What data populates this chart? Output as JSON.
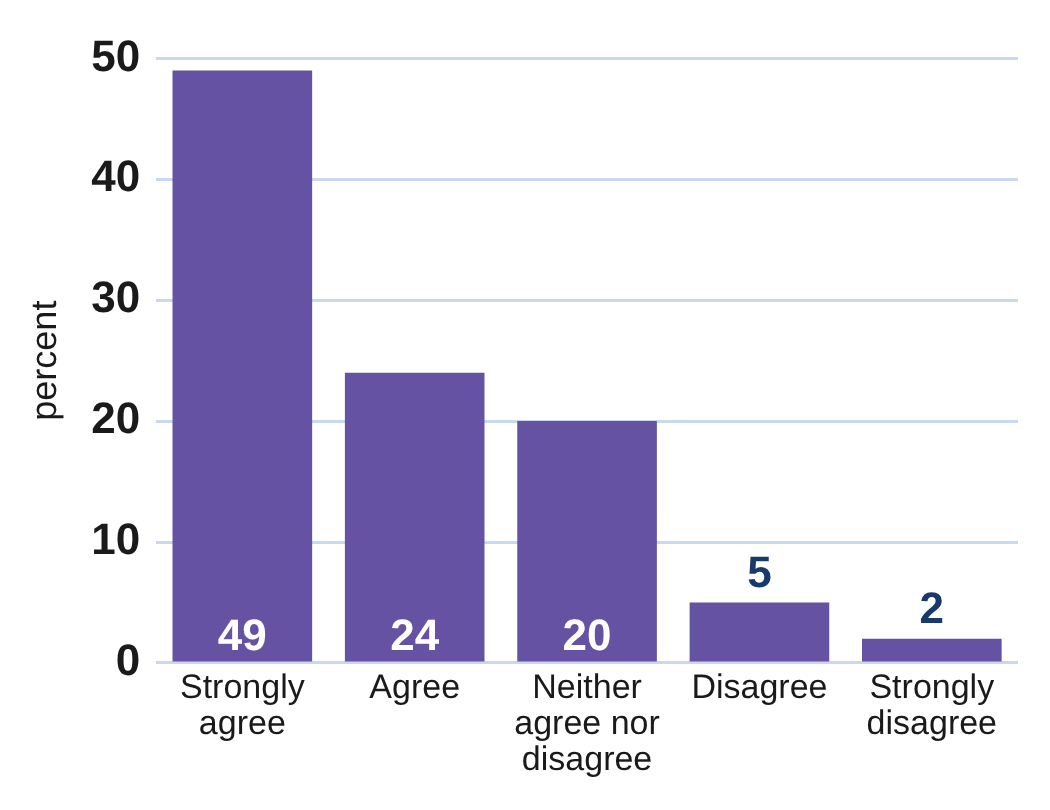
{
  "chart_data": {
    "type": "bar",
    "ylabel": "percent",
    "categories": [
      "Strongly agree",
      "Agree",
      "Neither agree nor disagree",
      "Disagree",
      "Strongly disagree"
    ],
    "values": [
      49,
      24,
      20,
      5,
      2
    ],
    "color": "#6552a2",
    "ylim": [
      0,
      50
    ],
    "yticks": [
      0,
      10,
      20,
      30,
      40,
      50
    ],
    "grid": "y",
    "data_labels": true,
    "legend": false
  }
}
